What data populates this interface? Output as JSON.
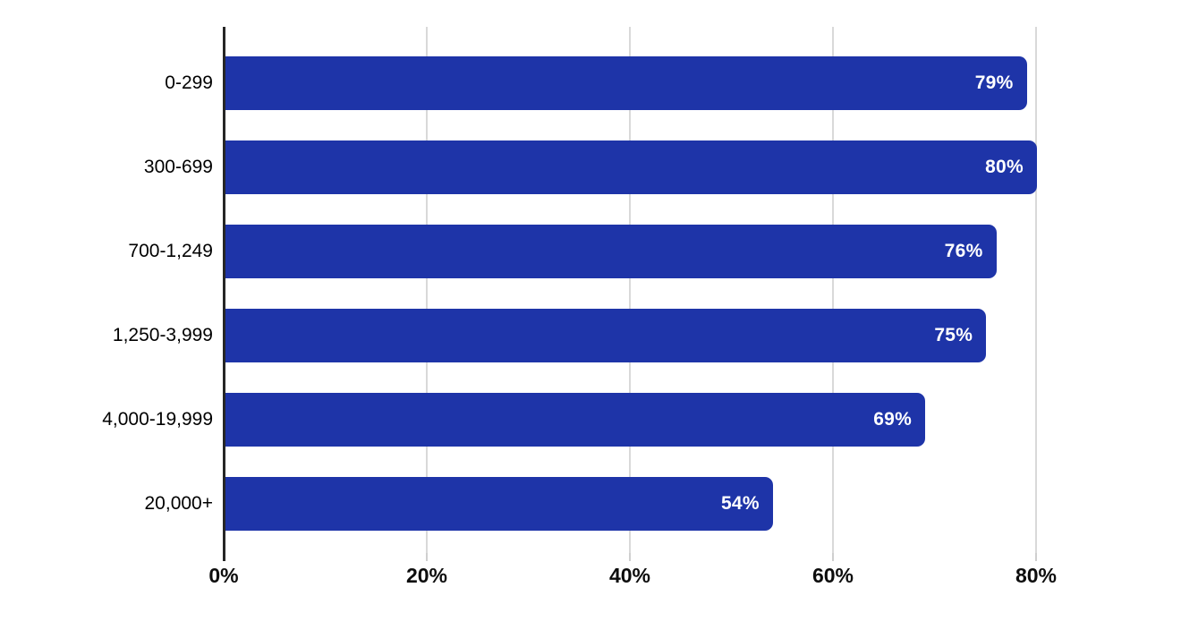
{
  "chart_data": {
    "type": "bar",
    "orientation": "horizontal",
    "title": "",
    "xlabel": "",
    "ylabel": "",
    "categories": [
      "0-299",
      "300-699",
      "700-1,249",
      "1,250-3,999",
      "4,000-19,999",
      "20,000+"
    ],
    "values": [
      79,
      80,
      76,
      75,
      69,
      54
    ],
    "value_labels": [
      "79%",
      "80%",
      "76%",
      "75%",
      "69%",
      "54%"
    ],
    "x_ticks": [
      "0%",
      "20%",
      "40%",
      "60%",
      "80%"
    ],
    "x_tick_values": [
      0,
      20,
      40,
      60,
      80
    ],
    "xlim": [
      0,
      86
    ],
    "grid": true,
    "legend": false,
    "colors": {
      "bar": "#1e34a8",
      "value_label": "#ffffff",
      "axis_line": "#262626",
      "gridline": "#d9d9d9",
      "tick_mark": "#cfcfcf",
      "category_label": "#000000",
      "tick_label": "#0d0d0d",
      "background": "#ffffff"
    }
  }
}
